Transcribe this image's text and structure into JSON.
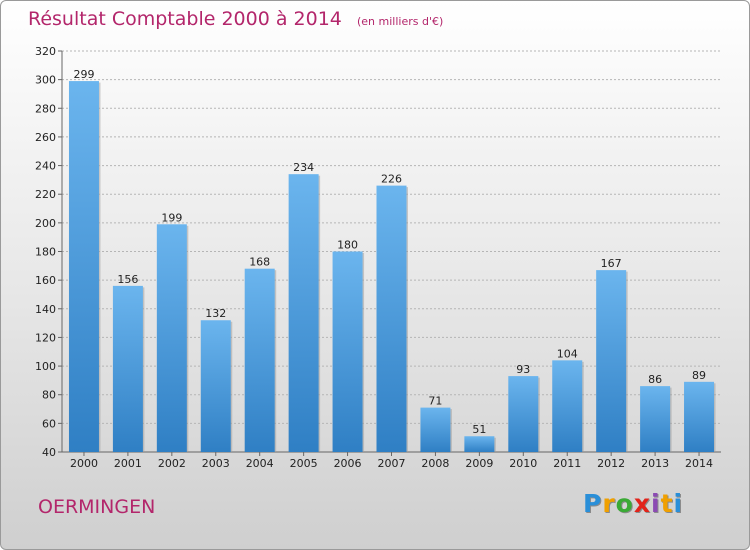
{
  "chart_data": {
    "type": "bar",
    "title": "Résultat Comptable 2000 à 2014",
    "subtitle": "(en milliers d'€)",
    "categories": [
      "2000",
      "2001",
      "2002",
      "2003",
      "2004",
      "2005",
      "2006",
      "2007",
      "2008",
      "2009",
      "2010",
      "2011",
      "2012",
      "2013",
      "2014"
    ],
    "values": [
      299,
      156,
      199,
      132,
      168,
      234,
      180,
      226,
      71,
      51,
      93,
      104,
      167,
      86,
      89
    ],
    "ylim": [
      40,
      320
    ],
    "yticks": [
      40,
      60,
      80,
      100,
      120,
      140,
      160,
      180,
      200,
      220,
      240,
      260,
      280,
      300,
      320
    ],
    "xlabel": "",
    "ylabel": "",
    "grid": true
  },
  "commune": "OERMINGEN",
  "logo": {
    "letters": [
      "P",
      "r",
      "o",
      "x",
      "i",
      "t",
      "i"
    ],
    "colors": [
      "#2a8fd8",
      "#f0a000",
      "#3aaa35",
      "#e2231a",
      "#8b4bb3",
      "#f0a000",
      "#2a8fd8"
    ]
  },
  "colors": {
    "title": "#b3266b",
    "bar_top": "#6bb5ee",
    "bar_bottom": "#2f7fc4"
  }
}
